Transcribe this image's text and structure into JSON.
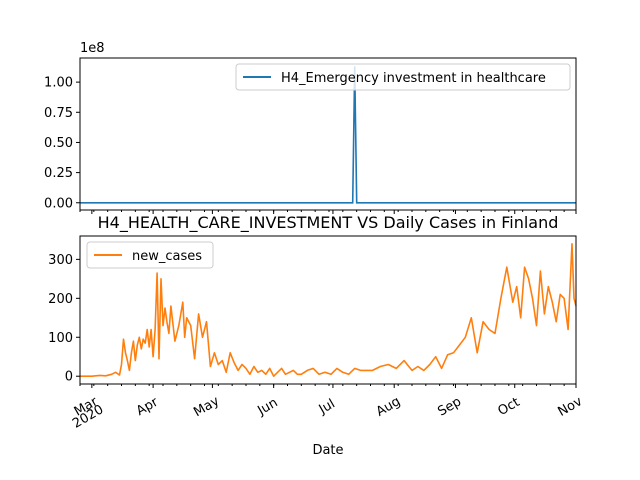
{
  "chart_data": [
    {
      "type": "line",
      "title": "",
      "xlabel": "",
      "ylabel": "",
      "scale_label": "1e8",
      "ylim": [
        -0.06,
        1.2
      ],
      "yticks": [
        0.0,
        0.25,
        0.5,
        0.75,
        1.0
      ],
      "ytick_labels": [
        "0.00",
        "0.25",
        "0.50",
        "0.75",
        "1.00"
      ],
      "legend": {
        "placement": "upper right",
        "entries": [
          "H4_Emergency investment in healthcare"
        ]
      },
      "color": "#1f77b4",
      "series": [
        {
          "name": "H4_Emergency investment in healthcare",
          "x": [
            "2020-02-24",
            "2020-07-11",
            "2020-07-12",
            "2020-07-13",
            "2020-11-01"
          ],
          "values": [
            0,
            0,
            1.13,
            0,
            0
          ]
        }
      ]
    },
    {
      "type": "line",
      "title": "H4_HEALTH_CARE_INVESTMENT VS Daily Cases in Finland",
      "xlabel": "Date",
      "ylabel": "",
      "ylim": [
        -20,
        360
      ],
      "yticks": [
        0,
        100,
        200,
        300
      ],
      "ytick_labels": [
        "0",
        "100",
        "200",
        "300"
      ],
      "xticks": [
        "2020-03-01",
        "2020-04-01",
        "2020-05-01",
        "2020-06-01",
        "2020-07-01",
        "2020-08-01",
        "2020-09-01",
        "2020-10-01",
        "2020-11-01"
      ],
      "xtick_labels": [
        "Mar",
        "Apr",
        "May",
        "Jun",
        "Jul",
        "Aug",
        "Sep",
        "Oct",
        "Nov"
      ],
      "year_label": "2020",
      "legend": {
        "placement": "upper left",
        "entries": [
          "new_cases"
        ]
      },
      "color": "#ff7f0e",
      "series": [
        {
          "name": "new_cases",
          "x": [
            "2020-02-24",
            "2020-03-01",
            "2020-03-05",
            "2020-03-08",
            "2020-03-11",
            "2020-03-13",
            "2020-03-15",
            "2020-03-16",
            "2020-03-17",
            "2020-03-18",
            "2020-03-19",
            "2020-03-20",
            "2020-03-21",
            "2020-03-22",
            "2020-03-23",
            "2020-03-24",
            "2020-03-25",
            "2020-03-26",
            "2020-03-27",
            "2020-03-28",
            "2020-03-29",
            "2020-03-30",
            "2020-03-31",
            "2020-04-01",
            "2020-04-02",
            "2020-04-03",
            "2020-04-04",
            "2020-04-05",
            "2020-04-06",
            "2020-04-07",
            "2020-04-08",
            "2020-04-09",
            "2020-04-10",
            "2020-04-12",
            "2020-04-14",
            "2020-04-16",
            "2020-04-17",
            "2020-04-18",
            "2020-04-20",
            "2020-04-22",
            "2020-04-24",
            "2020-04-26",
            "2020-04-28",
            "2020-04-30",
            "2020-05-02",
            "2020-05-04",
            "2020-05-06",
            "2020-05-08",
            "2020-05-10",
            "2020-05-12",
            "2020-05-14",
            "2020-05-16",
            "2020-05-18",
            "2020-05-20",
            "2020-05-22",
            "2020-05-24",
            "2020-05-26",
            "2020-05-28",
            "2020-05-30",
            "2020-06-01",
            "2020-06-03",
            "2020-06-05",
            "2020-06-07",
            "2020-06-09",
            "2020-06-11",
            "2020-06-13",
            "2020-06-15",
            "2020-06-18",
            "2020-06-21",
            "2020-06-24",
            "2020-06-27",
            "2020-06-30",
            "2020-07-03",
            "2020-07-06",
            "2020-07-09",
            "2020-07-12",
            "2020-07-15",
            "2020-07-18",
            "2020-07-21",
            "2020-07-25",
            "2020-07-29",
            "2020-08-02",
            "2020-08-06",
            "2020-08-10",
            "2020-08-13",
            "2020-08-16",
            "2020-08-19",
            "2020-08-22",
            "2020-08-25",
            "2020-08-28",
            "2020-08-31",
            "2020-09-03",
            "2020-09-06",
            "2020-09-09",
            "2020-09-12",
            "2020-09-15",
            "2020-09-18",
            "2020-09-21",
            "2020-09-24",
            "2020-09-27",
            "2020-09-30",
            "2020-10-02",
            "2020-10-04",
            "2020-10-06",
            "2020-10-08",
            "2020-10-10",
            "2020-10-12",
            "2020-10-14",
            "2020-10-16",
            "2020-10-18",
            "2020-10-20",
            "2020-10-22",
            "2020-10-24",
            "2020-10-26",
            "2020-10-28",
            "2020-10-30",
            "2020-10-31",
            "2020-11-01"
          ],
          "values": [
            0,
            0,
            2,
            1,
            5,
            10,
            3,
            30,
            95,
            60,
            40,
            15,
            60,
            90,
            40,
            80,
            100,
            70,
            95,
            85,
            120,
            75,
            120,
            50,
            120,
            265,
            45,
            250,
            130,
            175,
            140,
            110,
            180,
            90,
            130,
            190,
            100,
            150,
            130,
            45,
            160,
            100,
            140,
            25,
            60,
            30,
            40,
            10,
            60,
            35,
            15,
            30,
            20,
            5,
            25,
            10,
            15,
            5,
            20,
            0,
            10,
            20,
            5,
            10,
            15,
            5,
            5,
            15,
            20,
            5,
            10,
            5,
            20,
            10,
            5,
            20,
            15,
            15,
            15,
            25,
            30,
            20,
            40,
            15,
            25,
            15,
            30,
            50,
            20,
            55,
            60,
            80,
            100,
            150,
            60,
            140,
            120,
            110,
            200,
            280,
            190,
            230,
            150,
            280,
            250,
            200,
            130,
            270,
            160,
            230,
            190,
            140,
            210,
            200,
            120,
            340,
            200,
            180
          ]
        }
      ]
    }
  ]
}
